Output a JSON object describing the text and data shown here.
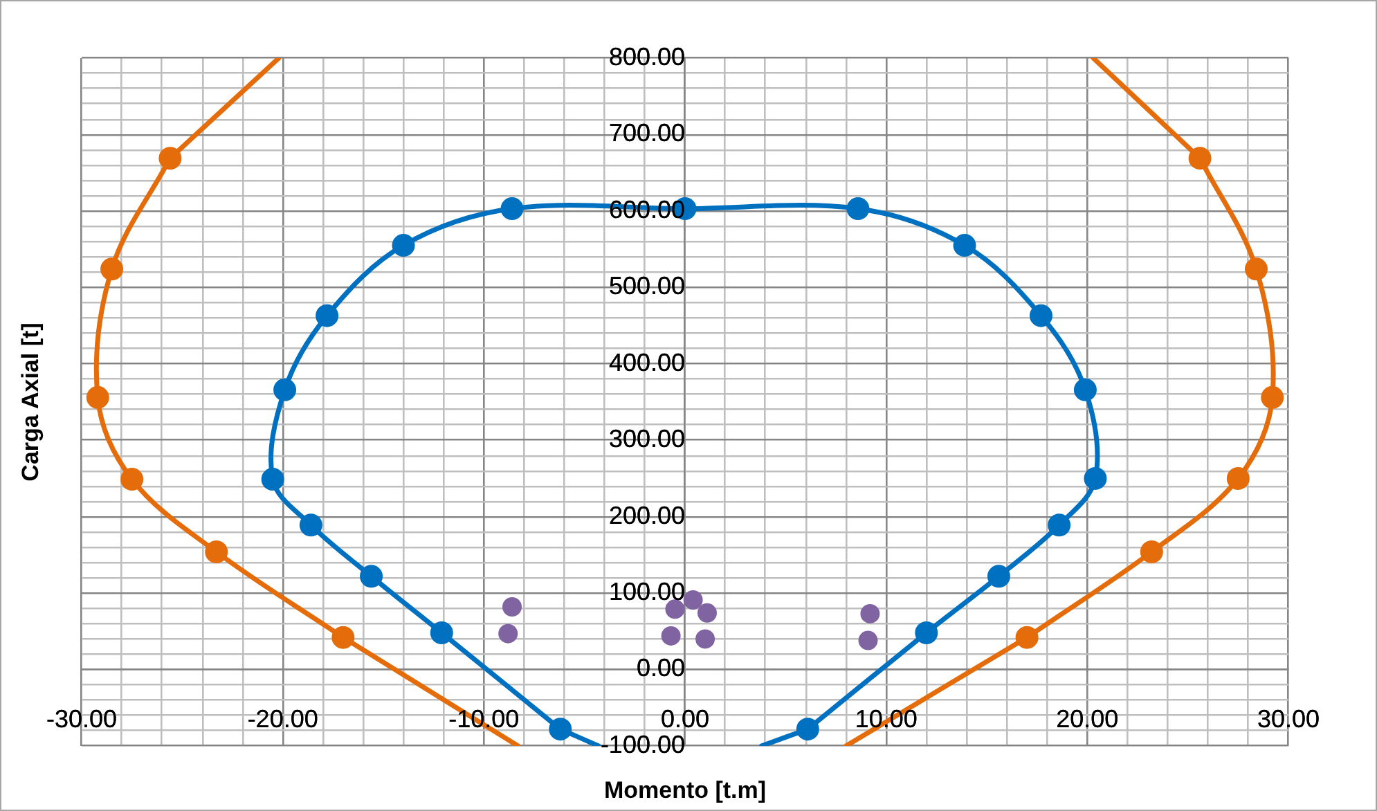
{
  "chart_data": {
    "type": "line",
    "xlabel": "Momento [t.m]",
    "ylabel": "Carga Axial [t]",
    "xlim": [
      -30,
      30
    ],
    "ylim": [
      -100,
      800
    ],
    "xticks": [
      {
        "value": -30,
        "label": "-30.00"
      },
      {
        "value": -28,
        "label": null
      },
      {
        "value": -26,
        "label": null
      },
      {
        "value": -24,
        "label": null
      },
      {
        "value": -22,
        "label": null
      },
      {
        "value": -20,
        "label": "-20.00"
      },
      {
        "value": -18,
        "label": null
      },
      {
        "value": -16,
        "label": null
      },
      {
        "value": -14,
        "label": null
      },
      {
        "value": -12,
        "label": null
      },
      {
        "value": -10,
        "label": "-10.00"
      },
      {
        "value": -8,
        "label": null
      },
      {
        "value": -6,
        "label": null
      },
      {
        "value": -4,
        "label": null
      },
      {
        "value": -2,
        "label": null
      },
      {
        "value": 0,
        "label": "0.00"
      },
      {
        "value": 2,
        "label": null
      },
      {
        "value": 4,
        "label": null
      },
      {
        "value": 6,
        "label": null
      },
      {
        "value": 8,
        "label": null
      },
      {
        "value": 10,
        "label": "10.00"
      },
      {
        "value": 12,
        "label": null
      },
      {
        "value": 14,
        "label": null
      },
      {
        "value": 16,
        "label": null
      },
      {
        "value": 18,
        "label": null
      },
      {
        "value": 20,
        "label": "20.00"
      },
      {
        "value": 22,
        "label": null
      },
      {
        "value": 24,
        "label": null
      },
      {
        "value": 26,
        "label": null
      },
      {
        "value": 28,
        "label": null
      },
      {
        "value": 30,
        "label": "30.00"
      }
    ],
    "yticks": [
      {
        "value": -100,
        "label": "-100.00"
      },
      {
        "value": -80,
        "label": null
      },
      {
        "value": -60,
        "label": null
      },
      {
        "value": -40,
        "label": null
      },
      {
        "value": -20,
        "label": null
      },
      {
        "value": 0,
        "label": "0.00"
      },
      {
        "value": 20,
        "label": null
      },
      {
        "value": 40,
        "label": null
      },
      {
        "value": 60,
        "label": null
      },
      {
        "value": 80,
        "label": null
      },
      {
        "value": 100,
        "label": "100.00"
      },
      {
        "value": 120,
        "label": null
      },
      {
        "value": 140,
        "label": null
      },
      {
        "value": 160,
        "label": null
      },
      {
        "value": 180,
        "label": null
      },
      {
        "value": 200,
        "label": "200.00"
      },
      {
        "value": 220,
        "label": null
      },
      {
        "value": 240,
        "label": null
      },
      {
        "value": 260,
        "label": null
      },
      {
        "value": 280,
        "label": null
      },
      {
        "value": 300,
        "label": "300.00"
      },
      {
        "value": 320,
        "label": null
      },
      {
        "value": 340,
        "label": null
      },
      {
        "value": 360,
        "label": null
      },
      {
        "value": 380,
        "label": null
      },
      {
        "value": 400,
        "label": "400.00"
      },
      {
        "value": 420,
        "label": null
      },
      {
        "value": 440,
        "label": null
      },
      {
        "value": 460,
        "label": null
      },
      {
        "value": 480,
        "label": null
      },
      {
        "value": 500,
        "label": "500.00"
      },
      {
        "value": 520,
        "label": null
      },
      {
        "value": 540,
        "label": null
      },
      {
        "value": 560,
        "label": null
      },
      {
        "value": 580,
        "label": null
      },
      {
        "value": 600,
        "label": "600.00"
      },
      {
        "value": 620,
        "label": null
      },
      {
        "value": 640,
        "label": null
      },
      {
        "value": 660,
        "label": null
      },
      {
        "value": 680,
        "label": null
      },
      {
        "value": 700,
        "label": "700.00"
      },
      {
        "value": 720,
        "label": null
      },
      {
        "value": 740,
        "label": null
      },
      {
        "value": 760,
        "label": null
      },
      {
        "value": 780,
        "label": null
      },
      {
        "value": 800,
        "label": "800.00"
      }
    ],
    "grid": true,
    "legend": false,
    "series": [
      {
        "color": "#0070c0",
        "marker": "circle",
        "x": [
          -6.2,
          -12.1,
          -15.6,
          -18.6,
          -20.5,
          -19.9,
          -17.8,
          -14.0,
          -8.6,
          0,
          8.6,
          13.9,
          17.7,
          19.9,
          20.4,
          18.6,
          15.6,
          12.0,
          6.1
        ],
        "values": [
          -78,
          48,
          122,
          189,
          249,
          366,
          463,
          555,
          603,
          603,
          603,
          555,
          463,
          366,
          250,
          189,
          122,
          48,
          -78
        ]
      },
      {
        "color": "#e46c0a",
        "marker": "circle",
        "x": [
          -17.0,
          -23.3,
          -27.5,
          -29.2,
          -28.5,
          -25.6
        ],
        "values": [
          42,
          154,
          249,
          356,
          524,
          669
        ]
      },
      {
        "color": "#e46c0a",
        "marker": "circle",
        "x": [
          25.6,
          28.4,
          29.2,
          27.5,
          23.2,
          17.0
        ],
        "values": [
          669,
          524,
          356,
          250,
          154,
          42
        ]
      },
      {
        "type": "line",
        "color": "#0070c0",
        "marker": "none",
        "x": [
          -4.3,
          -6.2
        ],
        "values": [
          -100,
          -78
        ]
      },
      {
        "type": "line",
        "color": "#0070c0",
        "marker": "none",
        "x": [
          6.1,
          3.8
        ],
        "values": [
          -78,
          -100
        ]
      },
      {
        "type": "line",
        "color": "#e46c0a",
        "marker": "none",
        "x": [
          -20.2,
          -25.6
        ],
        "values": [
          800,
          669
        ]
      },
      {
        "type": "line",
        "color": "#e46c0a",
        "marker": "none",
        "x": [
          25.6,
          20.3
        ],
        "values": [
          669,
          800
        ]
      },
      {
        "type": "line",
        "color": "#e46c0a",
        "marker": "none",
        "x": [
          -8.3,
          -17.0
        ],
        "values": [
          -100,
          42
        ]
      },
      {
        "type": "line",
        "color": "#e46c0a",
        "marker": "none",
        "x": [
          17.0,
          8.0
        ],
        "values": [
          42,
          -100
        ]
      },
      {
        "type": "scatter",
        "color": "#8064a2",
        "marker": "circle",
        "x": [
          -8.6,
          -8.8,
          -0.5,
          -0.7,
          0.4,
          1.1,
          1.0,
          9.2,
          9.1
        ],
        "values": [
          82,
          47,
          79,
          44,
          91,
          74,
          40,
          73,
          38
        ]
      }
    ]
  }
}
